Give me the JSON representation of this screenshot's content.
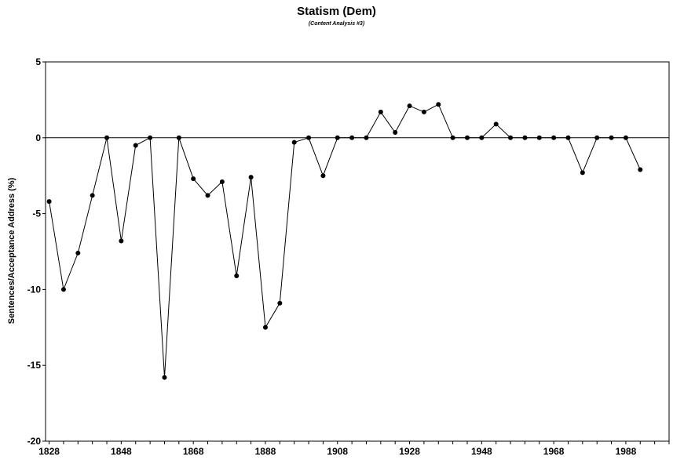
{
  "chart_data": {
    "type": "line",
    "title": "Statism (Dem)",
    "subtitle": "(Content Analysis #3)",
    "xlabel": "",
    "ylabel": "Sentences/Acceptance Address (%)",
    "xlim": [
      1827,
      2000
    ],
    "ylim": [
      -20,
      5
    ],
    "x_ticks": [
      1828,
      1848,
      1868,
      1888,
      1908,
      1928,
      1948,
      1968,
      1988
    ],
    "y_ticks": [
      5,
      0,
      -5,
      -10,
      -15,
      -20
    ],
    "grid": false,
    "legend": "none",
    "zero_line": true,
    "colors": {
      "line": "#000000",
      "marker": "#000000",
      "axis": "#000000"
    },
    "series": [
      {
        "x": [
          1828,
          1832,
          1836,
          1840,
          1844,
          1848,
          1852,
          1856,
          1860,
          1864,
          1868,
          1872,
          1876,
          1880,
          1884,
          1888,
          1892,
          1896,
          1900,
          1904,
          1908,
          1912,
          1916,
          1920,
          1924,
          1928,
          1932,
          1936,
          1940,
          1944,
          1948,
          1952,
          1956,
          1960,
          1964,
          1968,
          1972,
          1976,
          1980,
          1984,
          1988,
          1992
        ],
        "values": [
          -4.2,
          -10.0,
          -7.6,
          -3.8,
          0,
          -6.8,
          -0.5,
          0,
          -15.8,
          0,
          -2.7,
          -3.8,
          -2.9,
          -9.1,
          -2.6,
          -12.5,
          -10.9,
          -0.3,
          0,
          -2.5,
          0,
          0,
          0,
          1.7,
          0.35,
          2.1,
          1.7,
          2.2,
          0,
          0,
          0,
          0.9,
          0,
          0,
          0,
          0,
          0,
          -2.3,
          0,
          0,
          0,
          -2.1
        ]
      }
    ]
  }
}
